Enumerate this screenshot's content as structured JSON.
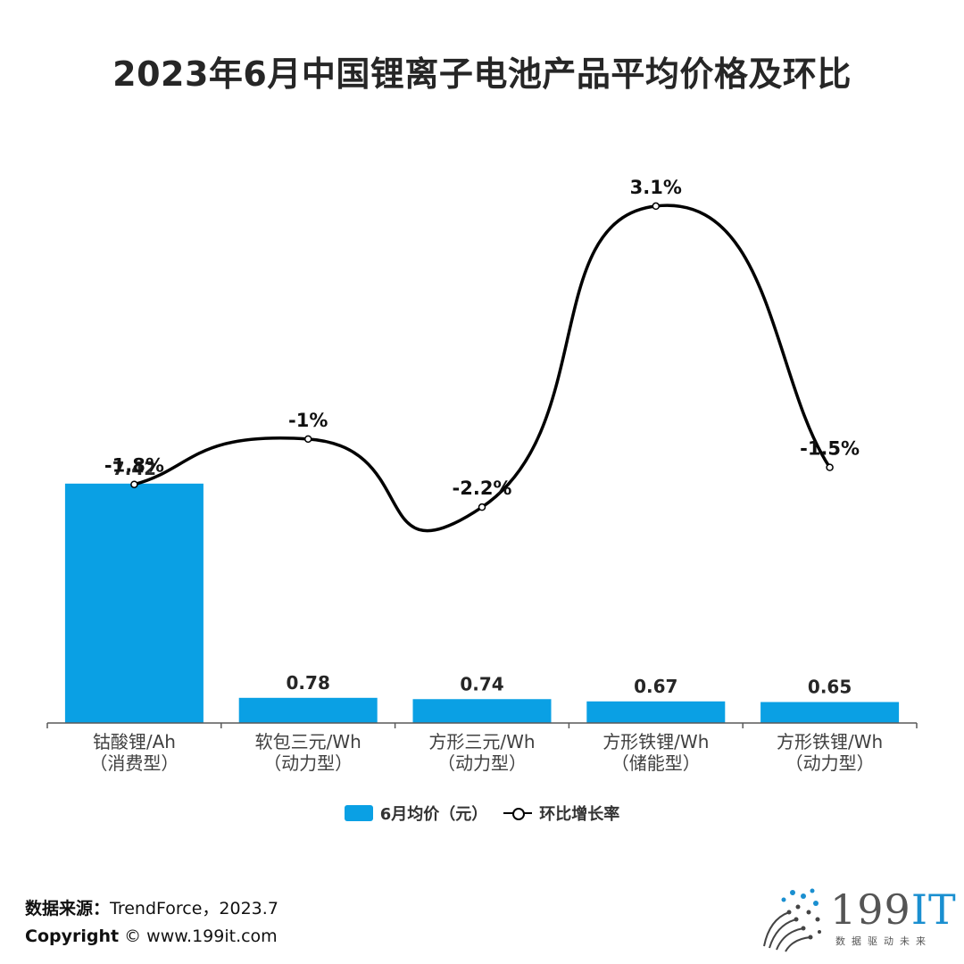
{
  "title": "2023年6月中国锂离子电池产品平均价格及环比",
  "chart_data": {
    "type": "bar",
    "categories": [
      [
        "钴酸锂/Ah",
        "（消费型）"
      ],
      [
        "软包三元/Wh",
        "（动力型）"
      ],
      [
        "方形三元/Wh",
        "（动力型）"
      ],
      [
        "方形铁锂/Wh",
        "（储能型）"
      ],
      [
        "方形铁锂/Wh",
        "（动力型）"
      ]
    ],
    "series": [
      {
        "name": "6月均价（元）",
        "kind": "bar",
        "axis": "left",
        "values": [
          7.42,
          0.78,
          0.74,
          0.67,
          0.65
        ],
        "labels": [
          "7.42",
          "0.78",
          "0.74",
          "0.67",
          "0.65"
        ],
        "color": "#0aa0e4"
      },
      {
        "name": "环比增长率",
        "kind": "line",
        "axis": "right",
        "values": [
          -1.8,
          -1.0,
          -2.2,
          3.1,
          -1.5
        ],
        "labels": [
          "-1.8%",
          "-1%",
          "-2.2%",
          "3.1%",
          "-1.5%"
        ],
        "color": "#000000"
      }
    ],
    "ylim": [
      0,
      8.3
    ],
    "y2lim": [
      -6.0,
      5.0
    ],
    "smooth": true,
    "grid": false,
    "legend": "bottom"
  },
  "legend": {
    "bar_label": "6月均价（元）",
    "line_label": "环比增长率"
  },
  "footer": {
    "source_label": "数据来源：",
    "source_text": "TrendForce，2023.7",
    "copyright_label": "Copyright",
    "copyright_text": " © www.199it.com"
  },
  "logo": {
    "main": "199",
    "accent": "IT",
    "sub": "数据驱动未来"
  },
  "colors": {
    "bar": "#0aa0e4",
    "line": "#000000",
    "axis": "#595959",
    "text": "#262626"
  }
}
